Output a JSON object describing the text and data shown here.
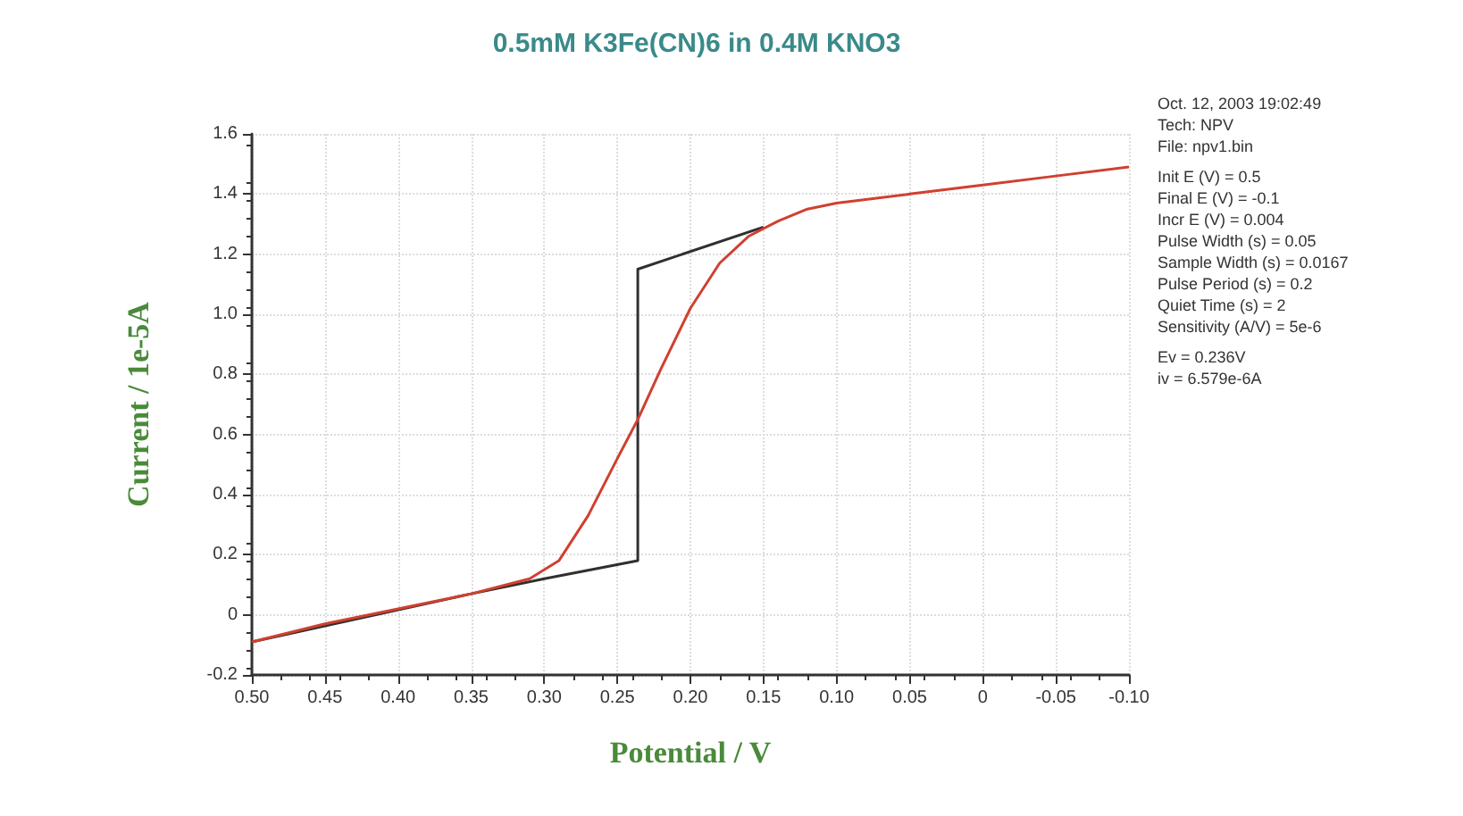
{
  "chart_data": {
    "type": "line",
    "title": "0.5mM K3Fe(CN)6 in 0.4M KNO3",
    "xlabel": "Potential / V",
    "ylabel": "Current / 1e-5A",
    "annotations": [
      "Oct. 12, 2003   19:02:49",
      "Tech: NPV",
      "File: npv1.bin",
      "Init E (V) = 0.5",
      "Final E (V) = -0.1",
      "Incr E (V) = 0.004",
      "Pulse Width (s) = 0.05",
      "Sample Width (s) = 0.0167",
      "Pulse Period (s) = 0.2",
      "Quiet Time (s) = 2",
      "Sensitivity (A/V) = 5e-6",
      "Ev = 0.236V",
      "iv = 6.579e-6A"
    ],
    "series": [
      {
        "color": "#d04030",
        "x": [
          0.5,
          0.45,
          0.4,
          0.35,
          0.31,
          0.29,
          0.27,
          0.25,
          0.236,
          0.22,
          0.2,
          0.18,
          0.16,
          0.14,
          0.12,
          0.1,
          0.05,
          0,
          -0.05,
          -0.1
        ],
        "values": [
          -0.09,
          -0.03,
          0.02,
          0.07,
          0.12,
          0.18,
          0.33,
          0.52,
          0.65,
          0.82,
          1.02,
          1.17,
          1.26,
          1.31,
          1.35,
          1.37,
          1.4,
          1.43,
          1.46,
          1.49
        ]
      },
      {
        "color": "#303030",
        "x": [
          0.5,
          0.35,
          0.3,
          0.236,
          0.236,
          0.15
        ],
        "values": [
          -0.09,
          0.07,
          0.12,
          0.18,
          1.15,
          1.29
        ]
      }
    ],
    "xlim": [
      0.5,
      -0.1
    ],
    "xticks": [
      {
        "value": 0.5,
        "label": "0.50"
      },
      {
        "value": 0.45,
        "label": "0.45"
      },
      {
        "value": 0.4,
        "label": "0.40"
      },
      {
        "value": 0.35,
        "label": "0.35"
      },
      {
        "value": 0.3,
        "label": "0.30"
      },
      {
        "value": 0.25,
        "label": "0.25"
      },
      {
        "value": 0.2,
        "label": "0.20"
      },
      {
        "value": 0.15,
        "label": "0.15"
      },
      {
        "value": 0.1,
        "label": "0.10"
      },
      {
        "value": 0.05,
        "label": "0.05"
      },
      0,
      {
        "value": -0.05,
        "label": "-0.05"
      },
      {
        "value": -0.1,
        "label": "-0.10"
      }
    ],
    "ylim": [
      -0.2,
      1.6
    ],
    "yticks": [
      -0.2,
      0,
      0.2,
      0.4,
      0.6,
      0.8,
      {
        "value": 1,
        "label": "1.0"
      },
      1.2,
      1.4,
      1.6
    ],
    "grid": true,
    "marker": "none",
    "line_style": "solid"
  }
}
